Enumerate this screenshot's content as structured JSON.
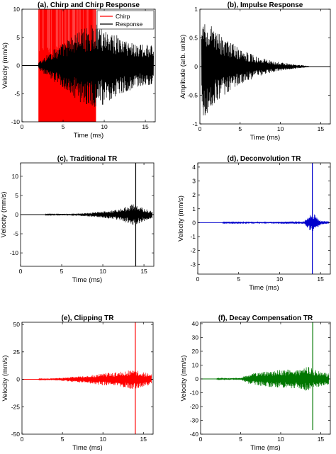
{
  "chart_data": [
    {
      "type": "line",
      "title": "(a), Chirp and Chirp Response",
      "xlabel": "Time (ms)",
      "ylabel": "Velocity (mm/s)",
      "xlim": [
        0,
        16.2
      ],
      "ylim": [
        -10,
        10
      ],
      "xticks": [
        0,
        5,
        10,
        15
      ],
      "yticks": [
        -10,
        -5,
        0,
        5,
        10
      ],
      "grid": false,
      "legend": "top-right",
      "series": [
        {
          "name": "Chirp",
          "color": "#ff0000",
          "kind": "band",
          "x_range": [
            2,
            9
          ],
          "amplitude": 10
        },
        {
          "name": "Response",
          "color": "#000000",
          "kind": "burst",
          "start": 2,
          "end": 16,
          "envelope": [
            [
              0,
              0.2
            ],
            [
              2,
              0.5
            ],
            [
              3,
              2.0
            ],
            [
              5,
              4.0
            ],
            [
              7,
              6.5
            ],
            [
              9,
              7.5
            ],
            [
              10,
              7.0
            ],
            [
              12,
              5.0
            ],
            [
              14,
              4.0
            ],
            [
              16,
              3.5
            ]
          ]
        }
      ]
    },
    {
      "type": "line",
      "title": "(b), Impulse Response",
      "xlabel": "Time (ms)",
      "ylabel": "Amplitude (arb. units)",
      "xlim": [
        0,
        16.2
      ],
      "ylim": [
        -1,
        1
      ],
      "xticks": [
        0,
        5,
        10,
        15
      ],
      "yticks": [
        -1,
        -0.5,
        0,
        0.5,
        1
      ],
      "grid": false,
      "series": [
        {
          "color": "#000000",
          "kind": "decay",
          "start": 0.2,
          "end": 13.5,
          "envelope": [
            [
              0.2,
              0.6
            ],
            [
              0.5,
              0.95
            ],
            [
              1.5,
              0.7
            ],
            [
              3,
              0.5
            ],
            [
              5,
              0.32
            ],
            [
              7,
              0.18
            ],
            [
              9,
              0.1
            ],
            [
              11,
              0.05
            ],
            [
              13.5,
              0.01
            ]
          ]
        }
      ]
    },
    {
      "type": "line",
      "title": "(c), Traditional TR",
      "xlabel": "Time (ms)",
      "ylabel": "Velocity (mm/s)",
      "xlim": [
        0,
        16.2
      ],
      "ylim": [
        -13.5,
        13.5
      ],
      "xticks": [
        0,
        5,
        10,
        15
      ],
      "yticks": [
        -10,
        -5,
        0,
        5,
        10
      ],
      "grid": false,
      "series": [
        {
          "color": "#000000",
          "kind": "focus",
          "start": 3,
          "end": 16,
          "peak_x": 14,
          "peak_top": 13.5,
          "peak_bottom": -13.5,
          "envelope": [
            [
              3,
              0.1
            ],
            [
              7,
              0.3
            ],
            [
              10,
              0.8
            ],
            [
              12,
              1.4
            ],
            [
              13.5,
              2.8
            ],
            [
              14,
              3.0
            ],
            [
              14.6,
              2.0
            ],
            [
              16,
              1.0
            ]
          ]
        }
      ]
    },
    {
      "type": "line",
      "title": "(d), Deconvolution TR",
      "xlabel": "Time (ms)",
      "ylabel": "Velocity (mm/s)",
      "xlim": [
        0,
        16.2
      ],
      "ylim": [
        -3.7,
        4.3
      ],
      "xticks": [
        0,
        5,
        10,
        15
      ],
      "yticks": [
        -3,
        -2,
        -1,
        0,
        1,
        2,
        3,
        4
      ],
      "grid": false,
      "series": [
        {
          "color": "#0000cc",
          "kind": "focus",
          "start": 3,
          "end": 16,
          "peak_x": 14,
          "peak_top": 4.3,
          "peak_bottom": -3.7,
          "envelope": [
            [
              3,
              0.03
            ],
            [
              8,
              0.05
            ],
            [
              11,
              0.08
            ],
            [
              13,
              0.1
            ],
            [
              13.7,
              0.6
            ],
            [
              14.3,
              0.6
            ],
            [
              15,
              0.15
            ],
            [
              16,
              0.1
            ]
          ]
        }
      ]
    },
    {
      "type": "line",
      "title": "(e), Clipping TR",
      "xlabel": "Time (ms)",
      "ylabel": "Velocity (mm/s)",
      "xlim": [
        0,
        16.2
      ],
      "ylim": [
        -50,
        52
      ],
      "xticks": [
        0,
        5,
        10,
        15
      ],
      "yticks": [
        -50,
        -25,
        0,
        25,
        50
      ],
      "grid": false,
      "series": [
        {
          "color": "#ff0000",
          "kind": "focus",
          "start": 2,
          "end": 16,
          "peak_x": 14,
          "peak_top": 52,
          "peak_bottom": -50,
          "envelope": [
            [
              2,
              0.3
            ],
            [
              5,
              1.5
            ],
            [
              8,
              3.5
            ],
            [
              10,
              5.5
            ],
            [
              12,
              7.0
            ],
            [
              13.5,
              9.0
            ],
            [
              14.3,
              8.0
            ],
            [
              16,
              5.0
            ]
          ]
        }
      ]
    },
    {
      "type": "line",
      "title": "(f), Decay Compensation TR",
      "xlabel": "Time (ms)",
      "ylabel": "Velocity (mm/s)",
      "xlim": [
        0,
        16.2
      ],
      "ylim": [
        -40,
        41
      ],
      "xticks": [
        0,
        5,
        10,
        15
      ],
      "yticks": [
        -40,
        -30,
        -20,
        -10,
        0,
        10,
        20,
        30,
        40
      ],
      "grid": false,
      "series": [
        {
          "color": "#007700",
          "kind": "focus",
          "start": 2,
          "end": 16,
          "peak_x": 14,
          "peak_top": 41,
          "peak_bottom": -37,
          "envelope": [
            [
              2,
              0.3
            ],
            [
              5,
              0.8
            ],
            [
              6,
              3.5
            ],
            [
              8,
              5.5
            ],
            [
              10,
              6.5
            ],
            [
              12,
              7.0
            ],
            [
              13.5,
              9.0
            ],
            [
              14.5,
              6.0
            ],
            [
              16,
              4.0
            ]
          ]
        }
      ]
    }
  ]
}
